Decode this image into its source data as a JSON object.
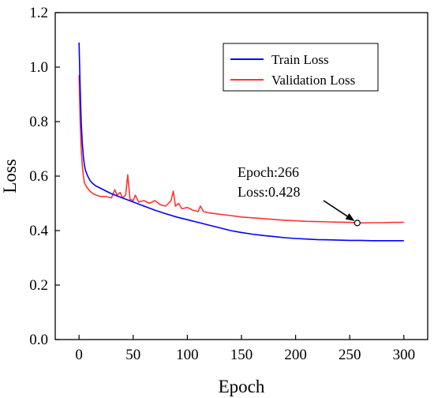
{
  "chart_data": {
    "type": "line",
    "title": "",
    "xlabel": "Epoch",
    "ylabel": "Loss",
    "xlim": [
      -22,
      322
    ],
    "ylim": [
      0.0,
      1.2
    ],
    "xticks": [
      0,
      50,
      100,
      150,
      200,
      250,
      300
    ],
    "xtick_labels": [
      "0",
      "50",
      "100",
      "150",
      "200",
      "250",
      "300"
    ],
    "yticks": [
      0.0,
      0.2,
      0.4,
      0.6,
      0.8,
      1.0,
      1.2
    ],
    "ytick_labels": [
      "0.0",
      "0.2",
      "0.4",
      "0.6",
      "0.8",
      "1.0",
      "1.2"
    ],
    "grid": false,
    "legend_position": "top-right",
    "series": [
      {
        "name": "Train Loss",
        "color": "#0000ff",
        "x": [
          0,
          1,
          2,
          3,
          4,
          5,
          6,
          8,
          10,
          12,
          15,
          20,
          25,
          30,
          40,
          50,
          60,
          70,
          80,
          90,
          100,
          110,
          120,
          130,
          140,
          150,
          160,
          170,
          180,
          190,
          200,
          210,
          220,
          230,
          240,
          250,
          260,
          270,
          280,
          290,
          300
        ],
        "values": [
          1.09,
          0.92,
          0.8,
          0.72,
          0.67,
          0.64,
          0.62,
          0.6,
          0.585,
          0.575,
          0.565,
          0.555,
          0.545,
          0.535,
          0.52,
          0.505,
          0.49,
          0.475,
          0.462,
          0.45,
          0.44,
          0.43,
          0.42,
          0.41,
          0.4,
          0.393,
          0.387,
          0.382,
          0.378,
          0.374,
          0.371,
          0.369,
          0.367,
          0.366,
          0.365,
          0.364,
          0.364,
          0.363,
          0.363,
          0.363,
          0.363
        ]
      },
      {
        "name": "Validation Loss",
        "color": "#ff3333",
        "x": [
          0,
          1,
          2,
          3,
          4,
          5,
          7,
          10,
          13,
          16,
          20,
          25,
          30,
          33,
          35,
          38,
          40,
          43,
          45,
          47,
          50,
          52,
          55,
          60,
          65,
          70,
          75,
          80,
          85,
          87,
          89,
          92,
          95,
          100,
          105,
          110,
          112,
          115,
          120,
          130,
          140,
          150,
          160,
          170,
          180,
          190,
          200,
          210,
          220,
          230,
          240,
          250,
          260,
          270,
          280,
          290,
          300
        ],
        "values": [
          0.97,
          0.8,
          0.7,
          0.64,
          0.6,
          0.575,
          0.56,
          0.545,
          0.535,
          0.53,
          0.525,
          0.525,
          0.52,
          0.55,
          0.53,
          0.54,
          0.52,
          0.53,
          0.605,
          0.515,
          0.51,
          0.53,
          0.505,
          0.51,
          0.5,
          0.51,
          0.495,
          0.49,
          0.51,
          0.545,
          0.49,
          0.5,
          0.48,
          0.485,
          0.475,
          0.47,
          0.49,
          0.47,
          0.465,
          0.46,
          0.455,
          0.45,
          0.447,
          0.444,
          0.441,
          0.438,
          0.436,
          0.434,
          0.433,
          0.432,
          0.431,
          0.43,
          0.428,
          0.429,
          0.429,
          0.43,
          0.43
        ]
      }
    ],
    "annotation": {
      "lines": [
        "Epoch:266",
        "Loss:0.428"
      ],
      "point_x": 257,
      "point_y": 0.428
    }
  }
}
